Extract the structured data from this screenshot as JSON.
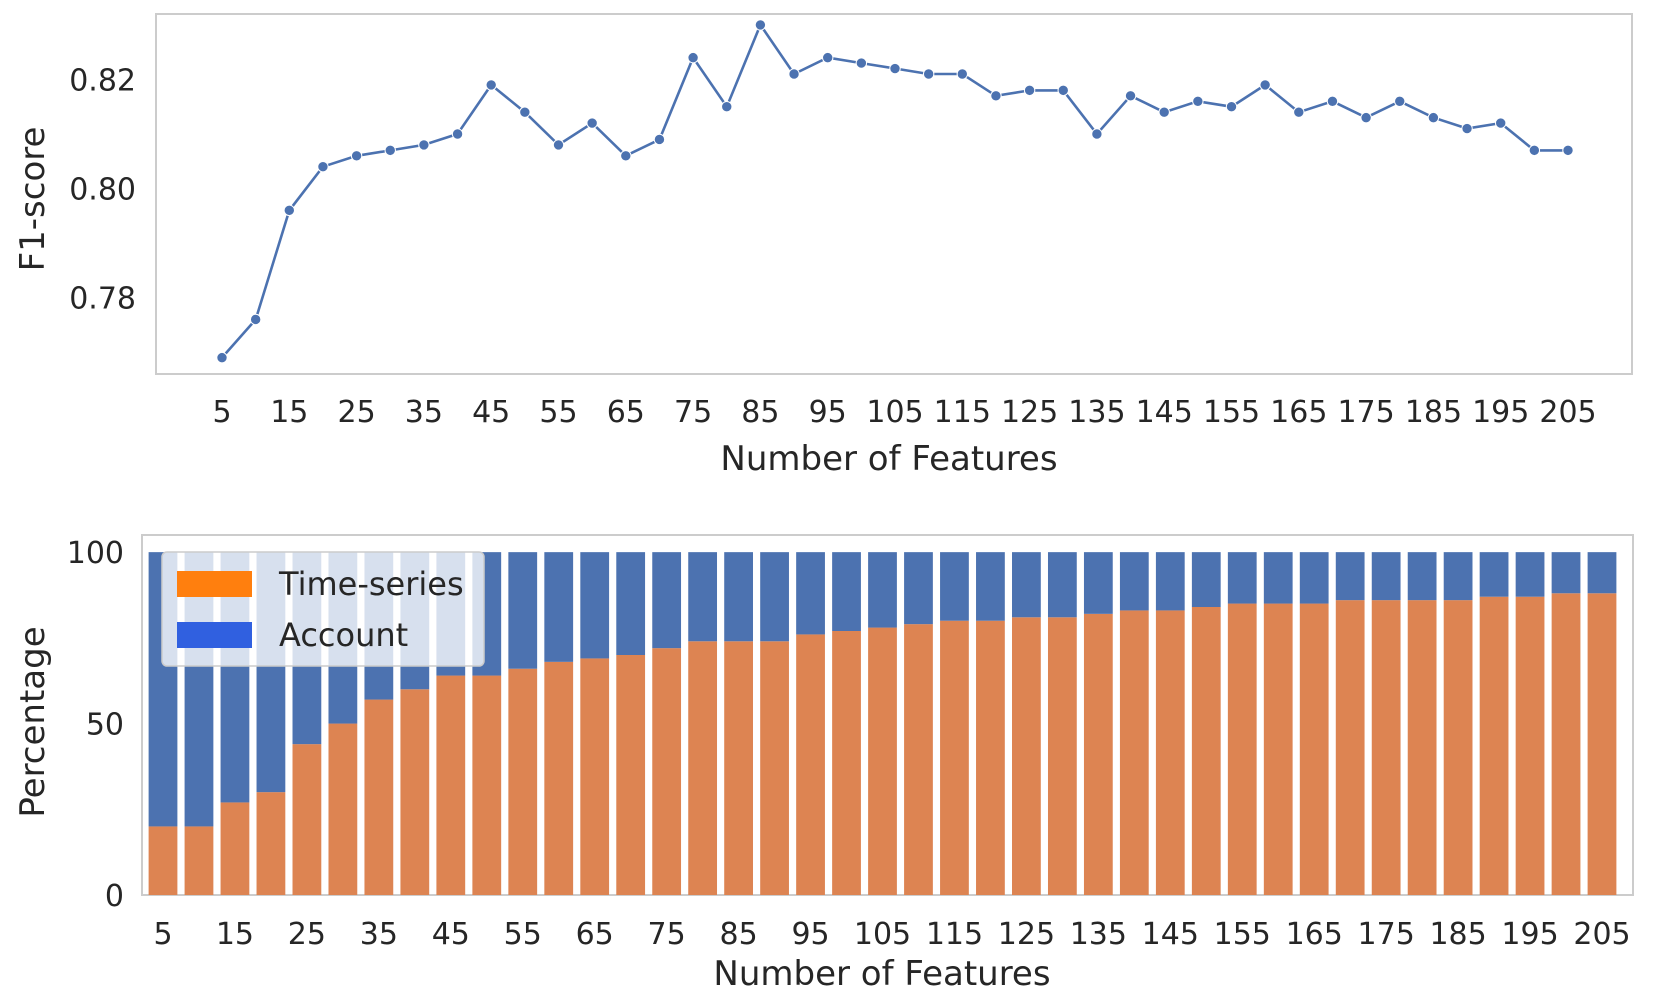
{
  "chart_data": [
    {
      "type": "line",
      "xlabel": "Number of Features",
      "ylabel": "F1-score",
      "x": [
        5,
        10,
        15,
        20,
        25,
        30,
        35,
        40,
        45,
        50,
        55,
        60,
        65,
        70,
        75,
        80,
        85,
        90,
        95,
        100,
        105,
        110,
        115,
        120,
        125,
        130,
        135,
        140,
        145,
        150,
        155,
        160,
        165,
        170,
        175,
        180,
        185,
        190,
        195,
        200,
        205
      ],
      "y": [
        0.769,
        0.776,
        0.796,
        0.804,
        0.806,
        0.807,
        0.808,
        0.81,
        0.819,
        0.814,
        0.808,
        0.812,
        0.806,
        0.809,
        0.824,
        0.815,
        0.83,
        0.821,
        0.824,
        0.823,
        0.822,
        0.821,
        0.821,
        0.817,
        0.818,
        0.818,
        0.81,
        0.817,
        0.814,
        0.816,
        0.815,
        0.819,
        0.814,
        0.816,
        0.813,
        0.816,
        0.813,
        0.811,
        0.812,
        0.807,
        0.807
      ],
      "xticks": [
        "5",
        "15",
        "25",
        "35",
        "45",
        "55",
        "65",
        "75",
        "85",
        "95",
        "105",
        "115",
        "125",
        "135",
        "145",
        "155",
        "165",
        "175",
        "185",
        "195",
        "205"
      ],
      "yticks": [
        "0.78",
        "0.80",
        "0.82"
      ],
      "ylim": [
        0.766,
        0.832
      ],
      "grid": false,
      "color": "#4c72b0"
    },
    {
      "type": "bar",
      "stacked": true,
      "xlabel": "Number of Features",
      "ylabel": "Percentage",
      "categories": [
        5,
        10,
        15,
        20,
        25,
        30,
        35,
        40,
        45,
        50,
        55,
        60,
        65,
        70,
        75,
        80,
        85,
        90,
        95,
        100,
        105,
        110,
        115,
        120,
        125,
        130,
        135,
        140,
        145,
        150,
        155,
        160,
        165,
        170,
        175,
        180,
        185,
        190,
        195,
        200,
        205
      ],
      "xticks": [
        "5",
        "15",
        "25",
        "35",
        "45",
        "55",
        "65",
        "75",
        "85",
        "95",
        "105",
        "115",
        "125",
        "135",
        "145",
        "155",
        "165",
        "175",
        "185",
        "195",
        "205"
      ],
      "yticks": [
        "0",
        "50",
        "100"
      ],
      "ylim": [
        0,
        105
      ],
      "series": [
        {
          "name": "Time-series",
          "color": "#dd8452",
          "values": [
            20,
            20,
            27,
            30,
            44,
            50,
            57,
            60,
            64,
            64,
            66,
            68,
            69,
            70,
            72,
            74,
            74,
            74,
            76,
            77,
            78,
            79,
            80,
            80,
            81,
            81,
            82,
            83,
            83,
            84,
            85,
            85,
            85,
            86,
            86,
            86,
            86,
            87,
            87,
            88,
            88
          ]
        },
        {
          "name": "Account",
          "color": "#4c72b0",
          "values": [
            80,
            80,
            73,
            70,
            56,
            50,
            43,
            40,
            36,
            36,
            34,
            32,
            31,
            30,
            28,
            26,
            26,
            26,
            24,
            23,
            22,
            21,
            20,
            20,
            19,
            19,
            18,
            17,
            17,
            16,
            15,
            15,
            15,
            14,
            14,
            14,
            14,
            13,
            13,
            12,
            12
          ]
        }
      ],
      "legend": {
        "position": "upper-left",
        "entries": [
          {
            "label": "Time-series",
            "color": "#ff7f0e"
          },
          {
            "label": "Account",
            "color": "#3060e0"
          }
        ]
      }
    }
  ]
}
